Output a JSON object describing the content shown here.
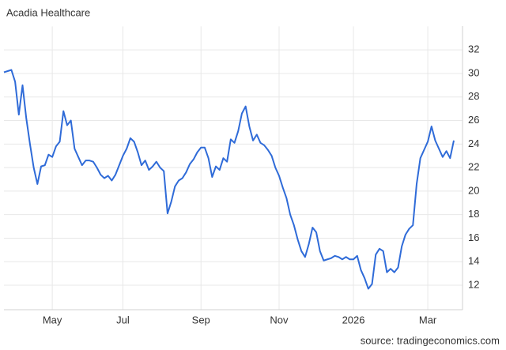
{
  "chart_data": {
    "type": "line",
    "title": "Acadia Healthcare",
    "source": "source: tradingeconomics.com",
    "color": "#2f6bd8",
    "grid": true,
    "categories": [
      null,
      null,
      null,
      null,
      null,
      null,
      null,
      null,
      null,
      null,
      null,
      null,
      null,
      "May",
      null,
      null,
      null,
      null,
      null,
      null,
      null,
      null,
      null,
      null,
      null,
      null,
      null,
      null,
      null,
      null,
      null,
      null,
      "Jul",
      null,
      null,
      null,
      null,
      null,
      null,
      null,
      null,
      null,
      null,
      null,
      null,
      null,
      null,
      null,
      null,
      null,
      null,
      null,
      null,
      "Sep",
      null,
      null,
      null,
      null,
      null,
      null,
      null,
      null,
      null,
      null,
      null,
      null,
      null,
      null,
      null,
      null,
      null,
      null,
      null,
      null,
      "Nov",
      null,
      null,
      null,
      null,
      null,
      null,
      null,
      null,
      null,
      null,
      null,
      null,
      null,
      null,
      null,
      null,
      null,
      null,
      null,
      "2026",
      null,
      null,
      null,
      null,
      null,
      null,
      null,
      null,
      null,
      null,
      null,
      null,
      null,
      null,
      null,
      null,
      null,
      null,
      null,
      "Mar",
      null,
      null,
      null,
      null,
      null,
      null,
      null
    ],
    "values": [
      30.1,
      30.2,
      30.3,
      29.3,
      26.5,
      29.0,
      26.2,
      24.0,
      22.0,
      20.6,
      22.1,
      22.2,
      23.1,
      22.9,
      23.8,
      24.2,
      26.8,
      25.6,
      26.0,
      23.6,
      22.9,
      22.2,
      22.6,
      22.6,
      22.5,
      22.0,
      21.4,
      21.1,
      21.3,
      20.9,
      21.4,
      22.2,
      23.0,
      23.6,
      24.5,
      24.2,
      23.3,
      22.2,
      22.6,
      21.8,
      22.1,
      22.5,
      22.0,
      21.7,
      18.1,
      19.1,
      20.4,
      20.9,
      21.1,
      21.6,
      22.3,
      22.7,
      23.3,
      23.7,
      23.7,
      22.8,
      21.2,
      22.1,
      21.8,
      22.8,
      22.5,
      24.4,
      24.1,
      25.1,
      26.6,
      27.2,
      25.5,
      24.3,
      24.8,
      24.1,
      23.9,
      23.5,
      23.0,
      22.0,
      21.3,
      20.3,
      19.4,
      18.0,
      17.1,
      15.9,
      14.9,
      14.4,
      15.5,
      16.9,
      16.5,
      14.9,
      14.1,
      14.2,
      14.3,
      14.5,
      14.4,
      14.2,
      14.4,
      14.2,
      14.2,
      14.5,
      13.3,
      12.6,
      11.7,
      12.1,
      14.6,
      15.1,
      14.9,
      13.1,
      13.4,
      13.1,
      13.5,
      15.3,
      16.3,
      16.8,
      17.1,
      20.6,
      22.8,
      23.5,
      24.2,
      25.5,
      24.3,
      23.6,
      22.9,
      23.4,
      22.8,
      24.3
    ],
    "ylim": [
      10,
      34
    ],
    "yticks": [
      12,
      14,
      16,
      18,
      20,
      22,
      24,
      26,
      28,
      30,
      32
    ]
  }
}
